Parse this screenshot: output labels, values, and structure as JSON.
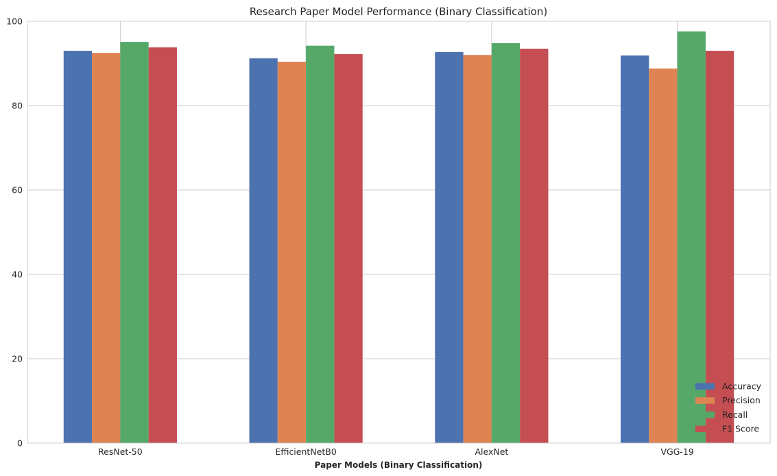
{
  "chart_data": {
    "type": "bar",
    "title": "Research Paper Model Performance (Binary Classification)",
    "xlabel": "Paper Models (Binary Classification)",
    "ylabel": "",
    "ylim": [
      0,
      100
    ],
    "yticks": [
      0,
      20,
      40,
      60,
      80,
      100
    ],
    "grid": true,
    "legend_position": "bottom-right",
    "categories": [
      "ResNet-50",
      "EfficientNetB0",
      "AlexNet",
      "VGG-19"
    ],
    "series": [
      {
        "name": "Accuracy",
        "color": "#4c72b0",
        "values": [
          93.0,
          91.2,
          92.7,
          91.9
        ]
      },
      {
        "name": "Precision",
        "color": "#dd8452",
        "values": [
          92.5,
          90.4,
          92.0,
          88.8
        ]
      },
      {
        "name": "Recall",
        "color": "#55a868",
        "values": [
          95.1,
          94.2,
          94.8,
          97.6
        ]
      },
      {
        "name": "F1 Score",
        "color": "#c44e52",
        "values": [
          93.8,
          92.2,
          93.5,
          93.0
        ]
      }
    ]
  }
}
